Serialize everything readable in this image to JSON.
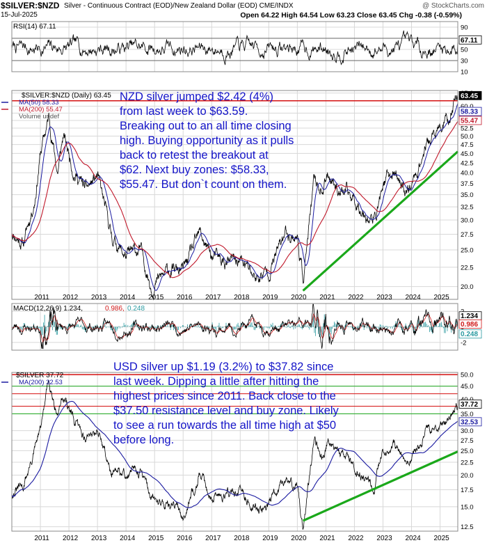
{
  "header": {
    "symbol": "$SILVER:$NZD",
    "description": "Silver - Continuous Contract (EOD)/New Zealand Dollar (EOD) CME/INDX",
    "watermark": "@ StockCharts.com",
    "date": "15-Jul-2025",
    "ohlc": "Open 64.22  High 64.54  Low 63.23  Close 63.45  Chg -0.38 (-0.59%)"
  },
  "colors": {
    "price": "#000000",
    "ma50": "#1a1aa0",
    "ma200": "#c0182a",
    "resistance": "#d41010",
    "trend": "#1aa81a",
    "macd_signal": "#d01818",
    "macd_hist": "#2a9aa0",
    "note": "#1414c8",
    "grid": "#d8d8d8"
  },
  "annotations": {
    "nzd_note": [
      "NZD silver jumped $2.42 (4%)",
      "from last week to $63.59.",
      "Breaking out to an all time closing",
      "high. Buying opportunity as it pulls",
      "back to retest the breakout at",
      "$62. Next buy zones: $58.33,",
      "$55.47. But don`t count on them."
    ],
    "usd_note": [
      "USD silver up $1.19 (3.2%) to $37.82 since",
      "last week. Dipping a little after hitting the",
      "highest prices since 2011. Back close to the",
      "$37.50 resistance level and buy zone. Likely",
      "to see a run towards the all time high at $50",
      "before long."
    ]
  },
  "chart_data": [
    {
      "type": "line",
      "panel": "rsi",
      "legend": "RSI(14) 67.11",
      "ylim": [
        10,
        100
      ],
      "y_ticks": [
        "90",
        "70",
        "50",
        "30",
        "10"
      ],
      "reference_lines": [
        70,
        30
      ],
      "last_value_label": "67.11",
      "last_value": 67.11
    },
    {
      "type": "line",
      "panel": "nzd_price",
      "legend": [
        "$SILVER:$NZD (Daily) 63.45",
        "MA(50) 58.33",
        "MA(200) 55.47",
        "Volume undef"
      ],
      "y_scale": "log",
      "ylim": [
        18.5,
        66
      ],
      "y_ticks": [
        "65.0",
        "60.0",
        "57.5",
        "55.0",
        "52.5",
        "50.0",
        "47.5",
        "45.0",
        "42.5",
        "40.0",
        "37.5",
        "35.0",
        "32.5",
        "30.0",
        "27.5",
        "25.0",
        "22.5",
        "20.0"
      ],
      "x_ticks": [
        "2011",
        "2012",
        "2013",
        "2014",
        "2015",
        "2016",
        "2017",
        "2018",
        "2019",
        "2020",
        "2021",
        "2022",
        "2023",
        "2024",
        "2025"
      ],
      "price_points": [
        {
          "x": 2010.0,
          "y": 28.0
        },
        {
          "x": 2010.4,
          "y": 26.0
        },
        {
          "x": 2010.8,
          "y": 34.0
        },
        {
          "x": 2011.0,
          "y": 45.0
        },
        {
          "x": 2011.3,
          "y": 56.0
        },
        {
          "x": 2011.6,
          "y": 40.0
        },
        {
          "x": 2011.8,
          "y": 50.0
        },
        {
          "x": 2012.2,
          "y": 40.0
        },
        {
          "x": 2012.6,
          "y": 36.0
        },
        {
          "x": 2013.0,
          "y": 39.0
        },
        {
          "x": 2013.5,
          "y": 27.0
        },
        {
          "x": 2014.0,
          "y": 24.0
        },
        {
          "x": 2014.5,
          "y": 25.0
        },
        {
          "x": 2014.9,
          "y": 20.0
        },
        {
          "x": 2015.5,
          "y": 22.0
        },
        {
          "x": 2016.0,
          "y": 22.0
        },
        {
          "x": 2016.6,
          "y": 27.5
        },
        {
          "x": 2017.0,
          "y": 24.0
        },
        {
          "x": 2017.5,
          "y": 23.0
        },
        {
          "x": 2018.0,
          "y": 23.5
        },
        {
          "x": 2018.6,
          "y": 21.0
        },
        {
          "x": 2019.0,
          "y": 22.0
        },
        {
          "x": 2019.6,
          "y": 28.0
        },
        {
          "x": 2020.0,
          "y": 27.0
        },
        {
          "x": 2020.2,
          "y": 21.0
        },
        {
          "x": 2020.6,
          "y": 38.0
        },
        {
          "x": 2020.9,
          "y": 36.0
        },
        {
          "x": 2021.1,
          "y": 40.0
        },
        {
          "x": 2021.5,
          "y": 36.0
        },
        {
          "x": 2022.0,
          "y": 34.0
        },
        {
          "x": 2022.7,
          "y": 29.5
        },
        {
          "x": 2023.0,
          "y": 37.5
        },
        {
          "x": 2023.4,
          "y": 40.0
        },
        {
          "x": 2023.8,
          "y": 36.0
        },
        {
          "x": 2024.0,
          "y": 37.0
        },
        {
          "x": 2024.5,
          "y": 47.0
        },
        {
          "x": 2025.0,
          "y": 52.0
        },
        {
          "x": 2025.3,
          "y": 55.0
        },
        {
          "x": 2025.54,
          "y": 63.45
        }
      ],
      "series": [
        {
          "name": "MA(50) 58.33",
          "last": 58.33
        },
        {
          "name": "MA(200) 55.47",
          "last": 55.47
        }
      ],
      "last_value_labels": [
        "63.45",
        "58.33",
        "55.47"
      ],
      "resistance_level": 62.0,
      "trendline": [
        {
          "x": 2020.2,
          "y": 19.5
        },
        {
          "x": 2025.85,
          "y": 45.5
        }
      ]
    },
    {
      "type": "line",
      "panel": "macd",
      "legend": [
        "MACD(12,26,9) 1.234,",
        "0.986,",
        "0.248"
      ],
      "ylim": [
        -3,
        3
      ],
      "y_ticks": [
        "2",
        "0",
        "-2"
      ],
      "last_value_labels": [
        "1.234",
        "0.986",
        "0.248"
      ]
    },
    {
      "type": "line",
      "panel": "usd_price",
      "legend": [
        "$SILVER 37.72",
        "MA(200) 32.53"
      ],
      "y_scale": "log",
      "ylim": [
        12,
        51
      ],
      "y_ticks": [
        "50.0",
        "45.0",
        "40.0",
        "35.0",
        "30.0",
        "27.5",
        "25.0",
        "22.5",
        "20.0",
        "17.5",
        "15.0",
        "12.5"
      ],
      "x_ticks": [
        "2011",
        "2012",
        "2013",
        "2014",
        "2015",
        "2016",
        "2017",
        "2018",
        "2019",
        "2020",
        "2021",
        "2022",
        "2023",
        "2024",
        "2025"
      ],
      "price_points": [
        {
          "x": 2010.0,
          "y": 17.0
        },
        {
          "x": 2010.4,
          "y": 18.0
        },
        {
          "x": 2010.8,
          "y": 25.0
        },
        {
          "x": 2011.0,
          "y": 30.0
        },
        {
          "x": 2011.3,
          "y": 48.0
        },
        {
          "x": 2011.6,
          "y": 35.0
        },
        {
          "x": 2011.8,
          "y": 42.0
        },
        {
          "x": 2012.2,
          "y": 32.0
        },
        {
          "x": 2012.6,
          "y": 28.0
        },
        {
          "x": 2013.0,
          "y": 31.0
        },
        {
          "x": 2013.5,
          "y": 20.0
        },
        {
          "x": 2014.0,
          "y": 20.0
        },
        {
          "x": 2014.5,
          "y": 21.0
        },
        {
          "x": 2014.9,
          "y": 16.0
        },
        {
          "x": 2015.5,
          "y": 15.5
        },
        {
          "x": 2016.0,
          "y": 14.0
        },
        {
          "x": 2016.6,
          "y": 20.5
        },
        {
          "x": 2017.0,
          "y": 16.5
        },
        {
          "x": 2017.5,
          "y": 17.0
        },
        {
          "x": 2018.0,
          "y": 17.0
        },
        {
          "x": 2018.6,
          "y": 14.5
        },
        {
          "x": 2019.0,
          "y": 15.5
        },
        {
          "x": 2019.6,
          "y": 19.0
        },
        {
          "x": 2020.0,
          "y": 18.0
        },
        {
          "x": 2020.2,
          "y": 12.3
        },
        {
          "x": 2020.6,
          "y": 28.0
        },
        {
          "x": 2020.9,
          "y": 24.0
        },
        {
          "x": 2021.1,
          "y": 28.0
        },
        {
          "x": 2021.5,
          "y": 25.0
        },
        {
          "x": 2022.0,
          "y": 22.0
        },
        {
          "x": 2022.7,
          "y": 18.0
        },
        {
          "x": 2023.0,
          "y": 24.0
        },
        {
          "x": 2023.4,
          "y": 25.5
        },
        {
          "x": 2023.8,
          "y": 22.0
        },
        {
          "x": 2024.0,
          "y": 23.0
        },
        {
          "x": 2024.5,
          "y": 30.0
        },
        {
          "x": 2025.0,
          "y": 31.0
        },
        {
          "x": 2025.3,
          "y": 33.0
        },
        {
          "x": 2025.54,
          "y": 37.72
        }
      ],
      "series": [
        {
          "name": "MA(200) 32.53",
          "last": 32.53
        }
      ],
      "last_value_labels": [
        "37.72",
        "32.53"
      ],
      "horizontal_lines": [
        {
          "y": 50.0,
          "color": "red"
        },
        {
          "y": 45.0,
          "color": "green"
        },
        {
          "y": 42.0,
          "color": "red"
        },
        {
          "y": 37.5,
          "color": "red"
        },
        {
          "y": 35.0,
          "color": "green"
        }
      ],
      "trendline": [
        {
          "x": 2020.2,
          "y": 13.2
        },
        {
          "x": 2025.85,
          "y": 24.8
        }
      ]
    }
  ]
}
